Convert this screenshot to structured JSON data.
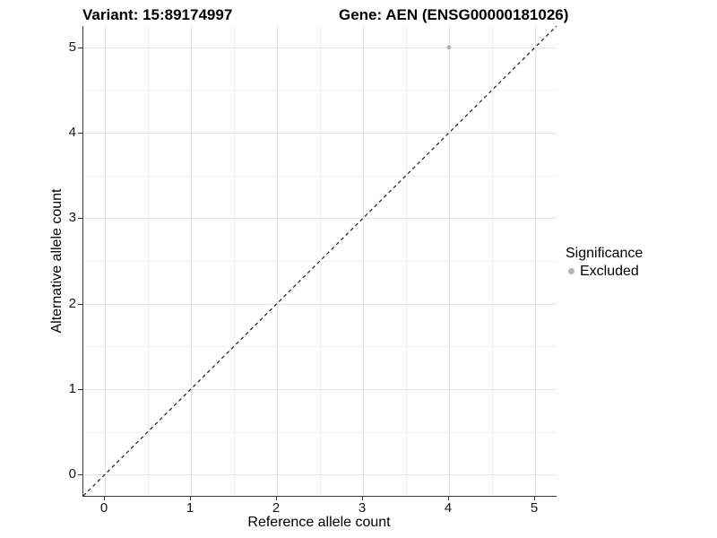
{
  "titles": {
    "variant": "Variant: 15:89174997",
    "gene": "Gene: AEN (ENSG00000181026)"
  },
  "chart_data": {
    "type": "scatter",
    "title": "Variant: 15:89174997   Gene: AEN (ENSG00000181026)",
    "xlabel": "Reference allele count",
    "ylabel": "Alternative allele count",
    "xlim": [
      -0.25,
      5.25
    ],
    "ylim": [
      -0.25,
      5.25
    ],
    "x_ticks": [
      0,
      1,
      2,
      3,
      4,
      5
    ],
    "y_ticks": [
      0,
      1,
      2,
      3,
      4,
      5
    ],
    "x_minor_ticks": [
      0.5,
      1.5,
      2.5,
      3.5,
      4.5
    ],
    "y_minor_ticks": [
      0.5,
      1.5,
      2.5,
      3.5,
      4.5
    ],
    "grid": true,
    "series": [
      {
        "name": "Excluded",
        "color": "#b3b3b3",
        "points": [
          {
            "x": 4,
            "y": 5
          }
        ]
      }
    ],
    "reference_line": {
      "description": "identity line y = x",
      "x1": -0.25,
      "y1": -0.25,
      "x2": 5.25,
      "y2": 5.25,
      "style": "dashed",
      "color": "#1a1a1a"
    },
    "legend": {
      "title": "Significance",
      "position": "right",
      "entries": [
        {
          "label": "Excluded",
          "color": "#b3b3b3"
        }
      ]
    }
  },
  "colors": {
    "background": "#ffffff",
    "grid_major": "#e4e4e4",
    "grid_minor": "#f0f0f0",
    "axis_line": "#3c3c3c",
    "excluded_point": "#b3b3b3"
  }
}
